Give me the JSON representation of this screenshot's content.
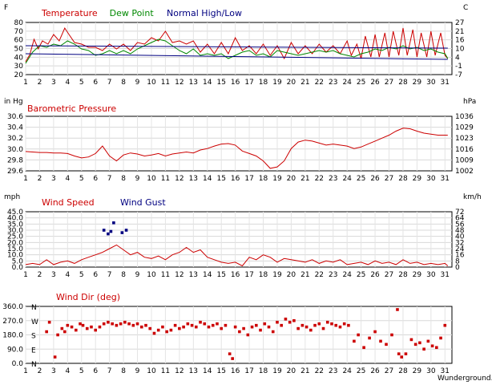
{
  "chart_data": [
    {
      "type": "line",
      "panel": "temperature",
      "left_unit": "F",
      "right_unit": "C",
      "legend": [
        {
          "label": "Temperature",
          "color": "#cc0000"
        },
        {
          "label": "Dew Point",
          "color": "#008800"
        },
        {
          "label": "Normal High/Low",
          "color": "#000080"
        }
      ],
      "x_ticks": [
        "1",
        "2",
        "3",
        "4",
        "5",
        "6",
        "7",
        "8",
        "9",
        "10",
        "11",
        "12",
        "13",
        "14",
        "15",
        "16",
        "17",
        "18",
        "19",
        "20",
        "21",
        "22",
        "23",
        "24",
        "25",
        "26",
        "27",
        "28",
        "29",
        "30",
        "31"
      ],
      "y_ticks_left": [
        "80",
        "70",
        "60",
        "50",
        "40",
        "30",
        "20"
      ],
      "y_ticks_right": [
        "27",
        "21",
        "16",
        "10",
        "4",
        "-1",
        "-7"
      ],
      "ylim": [
        20,
        85
      ],
      "series": [
        {
          "name": "Temperature",
          "color": "#cc0000",
          "x": [
            1,
            1.3,
            1.6,
            1.9,
            2.2,
            2.6,
            3,
            3.4,
            3.8,
            4.1,
            4.5,
            5,
            5.5,
            6,
            6.5,
            7,
            7.5,
            8,
            8.5,
            9,
            9.5,
            10,
            10.5,
            11,
            11.5,
            12,
            12.5,
            13,
            13.5,
            14,
            14.5,
            15,
            15.5,
            16,
            16.5,
            17,
            17.5,
            18,
            18.5,
            19,
            19.5,
            20,
            20.5,
            21,
            21.5,
            22,
            22.5,
            23,
            23.5,
            24,
            24.3,
            24.7,
            25,
            25.3,
            25.7,
            26,
            26.3,
            26.7,
            27,
            27.3,
            27.7,
            28,
            28.3,
            28.7,
            29,
            29.3,
            29.7,
            30,
            30.3,
            30.7,
            31,
            31.2
          ],
          "values": [
            36,
            45,
            64,
            52,
            62,
            58,
            70,
            62,
            78,
            70,
            60,
            58,
            54,
            54,
            50,
            58,
            52,
            58,
            50,
            60,
            58,
            66,
            62,
            74,
            60,
            62,
            58,
            62,
            48,
            58,
            46,
            60,
            46,
            66,
            50,
            56,
            46,
            58,
            44,
            56,
            40,
            60,
            46,
            56,
            46,
            58,
            48,
            56,
            46,
            62,
            44,
            58,
            40,
            68,
            42,
            70,
            42,
            72,
            42,
            74,
            44,
            78,
            44,
            76,
            42,
            72,
            42,
            74,
            44,
            72,
            44,
            40
          ]
        },
        {
          "name": "Dew Point",
          "color": "#008800",
          "x": [
            1,
            1.5,
            2,
            2.5,
            3,
            3.5,
            4,
            4.5,
            5,
            5.5,
            6,
            6.5,
            7,
            7.5,
            8,
            8.5,
            9,
            9.5,
            10,
            10.5,
            11,
            11.5,
            12,
            12.5,
            13,
            13.5,
            14,
            14.5,
            15,
            15.5,
            16,
            16.5,
            17,
            17.5,
            18,
            18.5,
            19,
            19.5,
            20,
            20.5,
            21,
            21.5,
            22,
            22.5,
            23,
            23.5,
            24,
            24.5,
            25,
            25.5,
            26,
            26.5,
            27,
            27.5,
            28,
            28.5,
            29,
            29.5,
            30,
            30.5,
            31,
            31.2
          ],
          "values": [
            34,
            48,
            56,
            54,
            58,
            56,
            62,
            58,
            52,
            50,
            44,
            46,
            50,
            46,
            50,
            46,
            52,
            56,
            60,
            64,
            62,
            56,
            50,
            46,
            52,
            44,
            46,
            44,
            46,
            40,
            44,
            48,
            50,
            44,
            46,
            42,
            50,
            48,
            46,
            44,
            46,
            48,
            50,
            48,
            50,
            46,
            44,
            42,
            46,
            48,
            52,
            50,
            54,
            52,
            56,
            52,
            54,
            50,
            52,
            48,
            46,
            40
          ]
        },
        {
          "name": "Normal High",
          "color": "#000080",
          "x": [
            1,
            31.2
          ],
          "values": [
            56,
            53
          ]
        },
        {
          "name": "Normal Low",
          "color": "#000080",
          "x": [
            1,
            31.2
          ],
          "values": [
            46,
            39
          ]
        }
      ]
    },
    {
      "type": "line",
      "panel": "pressure",
      "title": "Barometric Pressure",
      "left_unit": "in Hg",
      "right_unit": "hPa",
      "y_ticks_left": [
        "30.6",
        "30.4",
        "30.2",
        "30.0",
        "29.8",
        "29.6"
      ],
      "y_ticks_right": [
        "1036",
        "1029",
        "1023",
        "1016",
        "1009",
        "1002"
      ],
      "ylim": [
        29.6,
        30.7
      ],
      "series": [
        {
          "name": "Barometric Pressure",
          "color": "#cc0000",
          "x": [
            1,
            1.5,
            2,
            2.5,
            3,
            3.5,
            4,
            4.5,
            5,
            5.5,
            6,
            6.5,
            7,
            7.5,
            8,
            8.5,
            9,
            9.5,
            10,
            10.5,
            11,
            11.5,
            12,
            12.5,
            13,
            13.5,
            14,
            14.5,
            15,
            15.5,
            16,
            16.5,
            17,
            17.5,
            18,
            18.5,
            19,
            19.5,
            20,
            20.5,
            21,
            21.5,
            22,
            22.5,
            23,
            23.5,
            24,
            24.5,
            25,
            25.5,
            26,
            26.5,
            27,
            27.5,
            28,
            28.5,
            29,
            29.5,
            30,
            30.5,
            31,
            31.2
          ],
          "values": [
            29.99,
            29.98,
            29.97,
            29.97,
            29.96,
            29.96,
            29.95,
            29.9,
            29.86,
            29.88,
            29.95,
            30.1,
            29.9,
            29.8,
            29.92,
            29.96,
            29.94,
            29.9,
            29.92,
            29.95,
            29.9,
            29.94,
            29.96,
            29.98,
            29.96,
            30.02,
            30.05,
            30.1,
            30.14,
            30.15,
            30.12,
            30.0,
            29.95,
            29.9,
            29.8,
            29.65,
            29.68,
            29.8,
            30.05,
            30.18,
            30.22,
            30.2,
            30.16,
            30.12,
            30.14,
            30.12,
            30.1,
            30.05,
            30.08,
            30.14,
            30.2,
            30.26,
            30.32,
            30.4,
            30.46,
            30.45,
            30.4,
            30.36,
            30.34,
            30.32,
            30.32,
            30.32
          ]
        }
      ]
    },
    {
      "type": "line",
      "panel": "wind",
      "left_unit": "mph",
      "right_unit": "km/h",
      "legend": [
        {
          "label": "Wind Speed",
          "color": "#cc0000"
        },
        {
          "label": "Wind Gust",
          "color": "#000080"
        }
      ],
      "y_ticks_left": [
        "45.0",
        "40.0",
        "35.0",
        "30.0",
        "25.0",
        "20.0",
        "15.0",
        "10.0",
        "5.0",
        "0.0"
      ],
      "y_ticks_right": [
        "72",
        "64",
        "56",
        "48",
        "40",
        "32",
        "24",
        "16",
        "8",
        "0"
      ],
      "ylim": [
        0,
        45
      ],
      "series": [
        {
          "name": "Wind Speed",
          "color": "#cc0000",
          "x": [
            1,
            1.5,
            2,
            2.5,
            3,
            3.5,
            4,
            4.5,
            5,
            5.5,
            6,
            6.5,
            7,
            7.5,
            8,
            8.5,
            9,
            9.5,
            10,
            10.5,
            11,
            11.5,
            12,
            12.5,
            13,
            13.5,
            14,
            14.5,
            15,
            15.5,
            16,
            16.5,
            17,
            17.5,
            18,
            18.5,
            19,
            19.5,
            20,
            20.5,
            21,
            21.5,
            22,
            22.5,
            23,
            23.5,
            24,
            24.5,
            25,
            25.5,
            26,
            26.5,
            27,
            27.5,
            28,
            28.5,
            29,
            29.5,
            30,
            30.5,
            31,
            31.2
          ],
          "values": [
            2,
            3,
            2,
            6,
            2,
            4,
            5,
            3,
            6,
            8,
            10,
            12,
            15,
            18,
            14,
            10,
            12,
            8,
            7,
            9,
            6,
            10,
            12,
            16,
            12,
            14,
            8,
            6,
            4,
            3,
            4,
            1,
            8,
            6,
            10,
            8,
            4,
            7,
            6,
            5,
            4,
            6,
            3,
            5,
            4,
            6,
            2,
            3,
            4,
            2,
            5,
            3,
            4,
            2,
            6,
            3,
            4,
            2,
            3,
            2,
            3,
            1
          ]
        },
        {
          "name": "Wind Gust",
          "color": "#000080",
          "mode": "markers",
          "x": [
            6.6,
            6.9,
            7.1,
            7.3,
            7.9,
            8.2
          ],
          "values": [
            30,
            27,
            29,
            36,
            28,
            30
          ]
        }
      ]
    },
    {
      "type": "scatter",
      "panel": "wind-direction",
      "legend": [
        {
          "label": "Wind Dir (deg)",
          "color": "#cc0000"
        }
      ],
      "y_ticks_left": [
        "360.0",
        "270.0",
        "180.0",
        "90.0",
        "0.0"
      ],
      "compass_labels": [
        "N",
        "W",
        "S",
        "E",
        "N"
      ],
      "ylim": [
        0,
        360
      ],
      "footer_text": "Wunderground.com",
      "series": [
        {
          "name": "Wind Dir (deg)",
          "color": "#cc0000",
          "mode": "markers",
          "x": [
            2.5,
            2.7,
            3.1,
            3.3,
            3.6,
            3.8,
            4.0,
            4.3,
            4.6,
            4.9,
            5.1,
            5.4,
            5.7,
            6.0,
            6.3,
            6.6,
            6.9,
            7.2,
            7.5,
            7.8,
            8.1,
            8.4,
            8.7,
            9.0,
            9.3,
            9.6,
            9.9,
            10.2,
            10.5,
            10.8,
            11.1,
            11.4,
            11.7,
            12.0,
            12.3,
            12.6,
            12.9,
            13.2,
            13.5,
            13.8,
            14.1,
            14.4,
            14.7,
            15.0,
            15.3,
            15.6,
            15.8,
            16.0,
            16.3,
            16.6,
            16.9,
            17.2,
            17.5,
            17.8,
            18.1,
            18.4,
            18.7,
            19.0,
            19.3,
            19.6,
            19.9,
            20.2,
            20.5,
            20.8,
            21.1,
            21.4,
            21.7,
            22.0,
            22.3,
            22.6,
            22.9,
            23.2,
            23.5,
            23.8,
            24.1,
            24.5,
            24.8,
            25.2,
            25.6,
            26.0,
            26.4,
            26.8,
            27.2,
            27.6,
            27.7,
            27.9,
            28.2,
            28.6,
            28.9,
            29.2,
            29.5,
            29.8,
            30.1,
            30.4,
            30.7,
            31.0
          ],
          "values": [
            200,
            260,
            40,
            180,
            220,
            200,
            240,
            230,
            210,
            250,
            240,
            220,
            230,
            210,
            230,
            250,
            260,
            250,
            240,
            250,
            260,
            250,
            240,
            250,
            230,
            240,
            220,
            190,
            210,
            230,
            200,
            210,
            240,
            220,
            230,
            250,
            240,
            230,
            260,
            250,
            230,
            240,
            250,
            220,
            240,
            60,
            30,
            230,
            200,
            220,
            180,
            230,
            240,
            210,
            250,
            230,
            200,
            260,
            240,
            280,
            260,
            270,
            220,
            240,
            230,
            210,
            240,
            250,
            220,
            260,
            250,
            240,
            230,
            250,
            240,
            140,
            180,
            100,
            160,
            200,
            140,
            120,
            180,
            340,
            60,
            40,
            60,
            150,
            120,
            130,
            90,
            140,
            110,
            100,
            160,
            240
          ]
        }
      ]
    }
  ]
}
